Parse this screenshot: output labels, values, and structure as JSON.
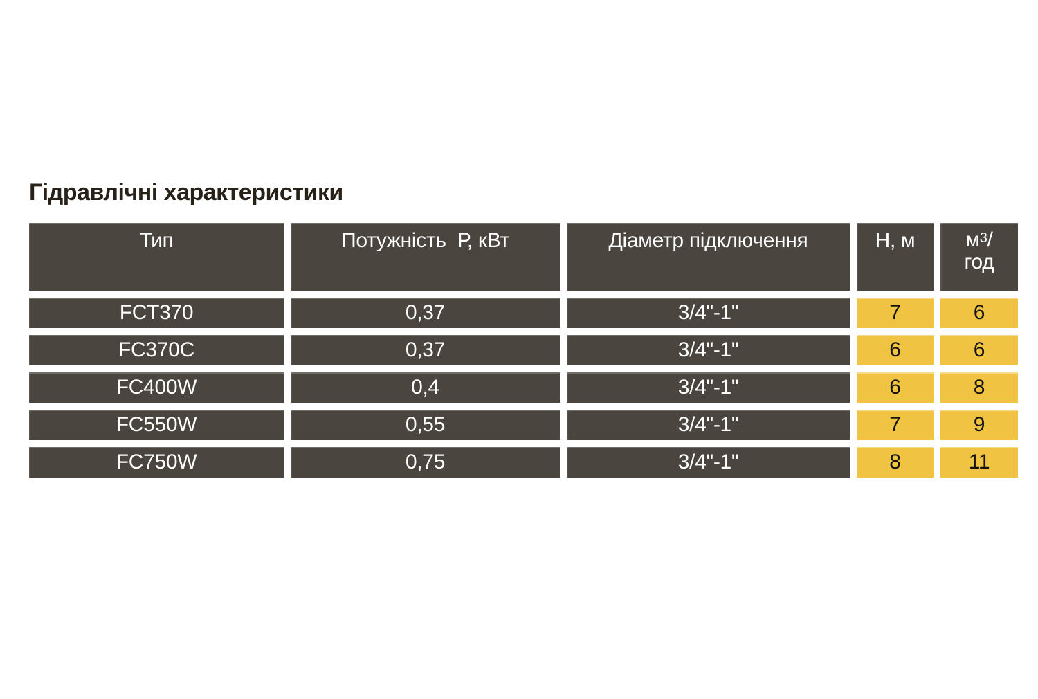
{
  "title": "Гідравлічні характеристики",
  "table": {
    "headers": {
      "type": "Тип",
      "power": "Потужність  Р, кВт",
      "diameter": "Діаметр підключення",
      "head": "Н, м",
      "flow": {
        "base": "м",
        "sup": "3",
        "slash": "/",
        "line2": "год"
      }
    },
    "rows": [
      {
        "type": "FCT370",
        "power": "0,37",
        "diameter": "3/4\"-1\"",
        "head": "7",
        "flow": "6"
      },
      {
        "type": "FC370C",
        "power": "0,37",
        "diameter": "3/4\"-1\"",
        "head": "6",
        "flow": "6"
      },
      {
        "type": "FC400W",
        "power": "0,4",
        "diameter": "3/4\"-1\"",
        "head": "6",
        "flow": "8"
      },
      {
        "type": "FC550W",
        "power": "0,55",
        "diameter": "3/4\"-1\"",
        "head": "7",
        "flow": "9"
      },
      {
        "type": "FC750W",
        "power": "0,75",
        "diameter": "3/4\"-1\"",
        "head": "8",
        "flow": "11"
      }
    ]
  },
  "colors": {
    "cell_dark": "#4a453e",
    "cell_yellow": "#f0c442",
    "header_text": "#ffffff",
    "data_text_dark": "#16130e",
    "title_text": "#272118",
    "background": "#ffffff"
  }
}
